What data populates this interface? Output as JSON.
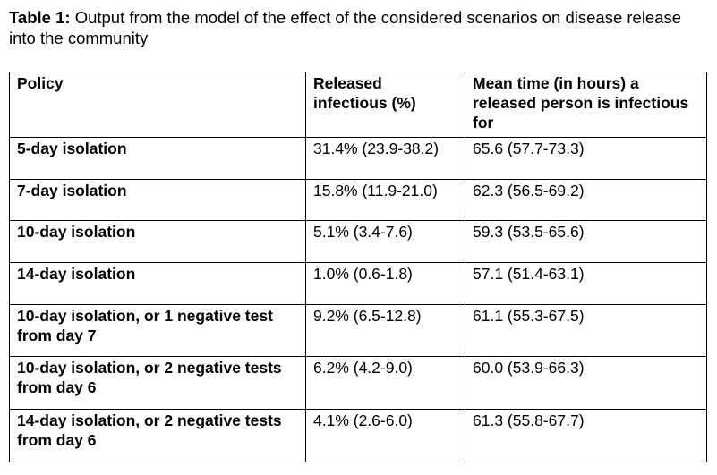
{
  "caption": {
    "label": "Table 1:",
    "text": "Output from the model of the effect of the considered scenarios on disease release into the community"
  },
  "table": {
    "headers": [
      "Policy",
      "Released infectious (%)",
      "Mean time (in hours) a released person is infectious for"
    ],
    "rows": [
      {
        "policy": "5-day isolation",
        "released": "31.4% (23.9-38.2)",
        "mean_time": "65.6 (57.7-73.3)"
      },
      {
        "policy": "7-day isolation",
        "released": "15.8% (11.9-21.0)",
        "mean_time": "62.3 (56.5-69.2)"
      },
      {
        "policy": "10-day isolation",
        "released": "5.1% (3.4-7.6)",
        "mean_time": "59.3 (53.5-65.6)"
      },
      {
        "policy": "14-day isolation",
        "released": "1.0% (0.6-1.8)",
        "mean_time": "57.1 (51.4-63.1)"
      },
      {
        "policy": "10-day isolation, or 1 negative test from day 7",
        "released": "9.2% (6.5-12.8)",
        "mean_time": "61.1 (55.3-67.5)"
      },
      {
        "policy": "10-day isolation, or 2 negative tests from day 6",
        "released": "6.2% (4.2-9.0)",
        "mean_time": "60.0 (53.9-66.3)"
      },
      {
        "policy": "14-day isolation, or 2 negative tests from day 6",
        "released": "4.1% (2.6-6.0)",
        "mean_time": "61.3 (55.8-67.7)"
      }
    ]
  }
}
